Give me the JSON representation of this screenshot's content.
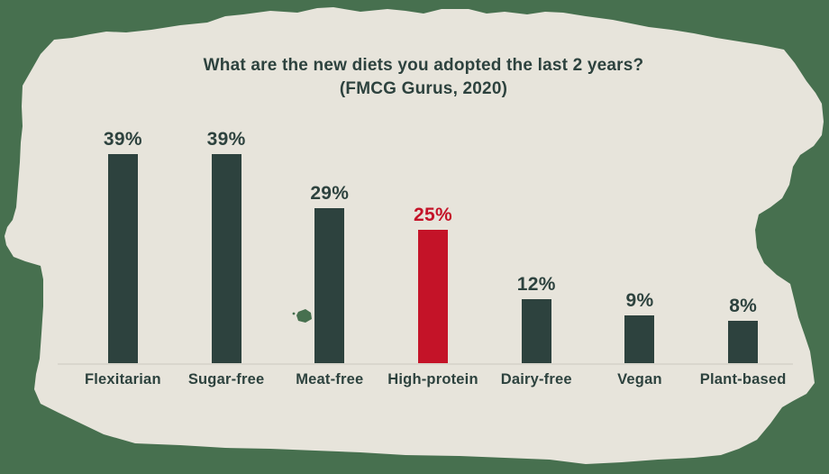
{
  "page": {
    "background_color": "#47704f",
    "canvas_color": "#e7e4db"
  },
  "chart_data": {
    "type": "bar",
    "title": "What are the new diets you adopted the last 2 years?",
    "subtitle": "(FMCG Gurus, 2020)",
    "categories": [
      "Flexitarian",
      "Sugar-free",
      "Meat-free",
      "High-protein",
      "Dairy-free",
      "Vegan",
      "Plant-based"
    ],
    "values": [
      39,
      39,
      29,
      25,
      12,
      9,
      8
    ],
    "value_labels": [
      "39%",
      "39%",
      "29%",
      "25%",
      "12%",
      "9%",
      "8%"
    ],
    "highlighted_category": "High-protein",
    "highlight_color": "#c41328",
    "bar_color": "#2d423e",
    "text_color": "#2d423e",
    "axis_line_color": "#d9d6cd",
    "ylim": [
      0,
      42
    ],
    "grid": false,
    "legend": false,
    "orientation": "vertical"
  }
}
